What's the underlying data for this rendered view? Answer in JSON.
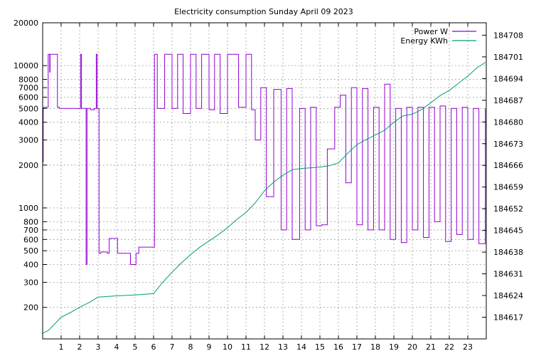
{
  "chart_data": {
    "type": "line",
    "title": "Electricity consumption Sunday April 09 2023",
    "xlabel": "",
    "ylabel": "",
    "xlim": [
      0,
      24
    ],
    "ylim": [
      120,
      20000
    ],
    "y_scale": "log",
    "y2lim": [
      184610,
      184712
    ],
    "grid": true,
    "legend_position": "top-right",
    "x_ticks": [
      1,
      2,
      3,
      4,
      5,
      6,
      7,
      8,
      9,
      10,
      11,
      12,
      13,
      14,
      15,
      16,
      17,
      18,
      19,
      20,
      21,
      22,
      23
    ],
    "y_ticks": [
      200,
      300,
      400,
      500,
      600,
      700,
      800,
      1000,
      2000,
      3000,
      4000,
      5000,
      6000,
      7000,
      8000,
      10000,
      20000
    ],
    "y2_ticks": [
      184617,
      184624,
      184631,
      184638,
      184645,
      184652,
      184659,
      184666,
      184673,
      184680,
      184687,
      184694,
      184701,
      184708
    ],
    "colors": {
      "power": "#9400d3",
      "energy": "#009e73"
    },
    "series": [
      {
        "name": "Power W",
        "axis": "y",
        "x": [
          0.0,
          0.03,
          0.06,
          0.1,
          0.3,
          0.38,
          0.4,
          0.8,
          0.9,
          1.0,
          1.2,
          1.5,
          1.6,
          1.65,
          1.8,
          1.9,
          2.0,
          2.05,
          2.1,
          2.3,
          2.35,
          2.4,
          2.6,
          2.8,
          2.9,
          2.95,
          3.05,
          3.1,
          3.15,
          3.5,
          3.6,
          4.0,
          4.05,
          4.7,
          4.75,
          5.0,
          5.05,
          5.2,
          6.0,
          6.05,
          6.2,
          6.6,
          7.0,
          7.3,
          7.6,
          8.0,
          8.3,
          8.6,
          9.0,
          9.3,
          9.6,
          10.0,
          10.3,
          10.6,
          11.0,
          11.3,
          11.5,
          11.8,
          12.1,
          12.5,
          12.9,
          13.2,
          13.5,
          13.9,
          14.2,
          14.5,
          14.8,
          15.1,
          15.4,
          15.8,
          16.1,
          16.4,
          16.7,
          17.0,
          17.3,
          17.6,
          17.9,
          18.2,
          18.5,
          18.8,
          19.1,
          19.4,
          19.7,
          20.0,
          20.3,
          20.6,
          20.9,
          21.2,
          21.5,
          21.8,
          22.1,
          22.4,
          22.7,
          23.0,
          23.3,
          23.6,
          23.95
        ],
        "values": [
          2100,
          5000,
          5100,
          5100,
          12000,
          9000,
          12000,
          5100,
          5000,
          5000,
          5000,
          5000,
          5000,
          5000,
          5000,
          5000,
          5000,
          12000,
          5000,
          5000,
          400,
          5000,
          4900,
          5000,
          12000,
          5000,
          480,
          480,
          490,
          480,
          610,
          610,
          480,
          480,
          400,
          400,
          480,
          530,
          530,
          12000,
          5000,
          12000,
          5000,
          12000,
          4600,
          12000,
          5000,
          12000,
          4900,
          12000,
          4600,
          12000,
          12000,
          5100,
          12000,
          4900,
          3000,
          7000,
          1200,
          6800,
          700,
          6900,
          600,
          5000,
          700,
          5100,
          750,
          760,
          2600,
          5100,
          6200,
          1500,
          7000,
          760,
          6900,
          700,
          5100,
          700,
          7400,
          600,
          5000,
          570,
          5100,
          700,
          5100,
          620,
          5100,
          800,
          5200,
          580,
          5000,
          650,
          5100,
          600,
          5000,
          560,
          5000
        ]
      },
      {
        "name": "Energy KWh",
        "axis": "y2",
        "x": [
          0.0,
          0.3,
          0.6,
          1.0,
          1.5,
          2.0,
          2.5,
          3.0,
          3.5,
          4.0,
          5.0,
          6.0,
          6.5,
          7.0,
          7.5,
          8.0,
          8.5,
          9.0,
          9.5,
          10.0,
          10.5,
          11.0,
          11.5,
          12.0,
          12.5,
          13.0,
          13.5,
          14.0,
          15.0,
          15.5,
          16.0,
          16.5,
          17.0,
          17.5,
          18.0,
          18.5,
          19.0,
          19.5,
          20.0,
          20.5,
          21.0,
          21.5,
          22.0,
          22.5,
          23.0,
          23.5,
          23.95
        ],
        "values": [
          184611.8,
          184612.7,
          184614.5,
          184617.0,
          184618.5,
          184620.2,
          184621.7,
          184623.5,
          184623.7,
          184623.9,
          184624.2,
          184624.6,
          184628.3,
          184631.5,
          184634.5,
          184637.2,
          184639.6,
          184641.6,
          184643.6,
          184645.9,
          184648.5,
          184650.8,
          184653.9,
          184657.8,
          184660.6,
          184662.8,
          184664.6,
          184665.0,
          184665.4,
          184665.9,
          184666.8,
          184669.9,
          184672.7,
          184674.3,
          184675.8,
          184677.3,
          184679.9,
          184682.0,
          184682.5,
          184684.0,
          184686.2,
          184688.5,
          184690.2,
          184692.5,
          184694.8,
          184697.5,
          184699.2
        ]
      }
    ]
  }
}
